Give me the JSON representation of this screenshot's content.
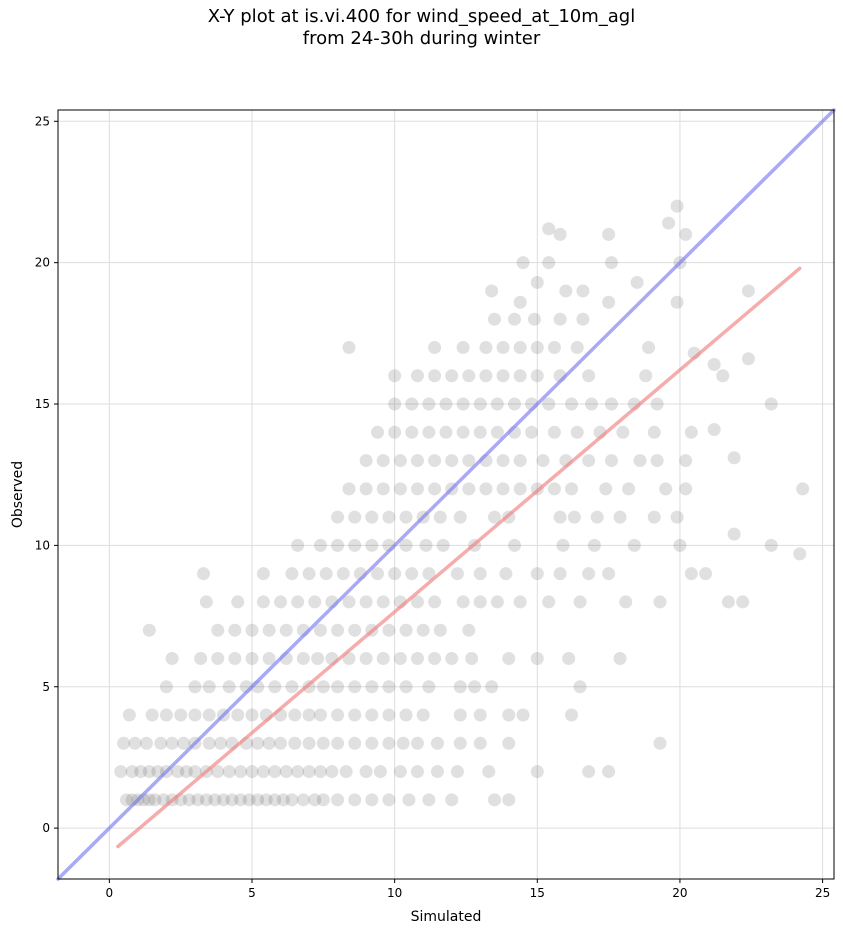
{
  "chart_data": {
    "type": "scatter",
    "title_line1": "X-Y plot at is.vi.400 for wind_speed_at_10m_agl",
    "title_line2": "from 24-30h during winter",
    "xlabel": "Simulated",
    "ylabel": "Observed",
    "xlim": [
      -1.8,
      25.4
    ],
    "ylim": [
      -1.8,
      25.4
    ],
    "xticks": [
      0,
      5,
      10,
      15,
      20,
      25
    ],
    "yticks": [
      0,
      5,
      10,
      15,
      20,
      25
    ],
    "grid": true,
    "colors": {
      "points": "#555555",
      "identity_line": "#7b7bf0",
      "fit_line": "#f08080"
    },
    "identity_line": {
      "x": [
        -1.8,
        25.4
      ],
      "y": [
        -1.8,
        25.4
      ]
    },
    "fit_line": {
      "x": [
        0.3,
        24.2
      ],
      "y": [
        -0.65,
        19.8
      ]
    },
    "points": [
      [
        0.6,
        1
      ],
      [
        0.8,
        1
      ],
      [
        1.0,
        1
      ],
      [
        1.2,
        1
      ],
      [
        1.4,
        1
      ],
      [
        1.6,
        1
      ],
      [
        1.9,
        1
      ],
      [
        2.2,
        1
      ],
      [
        2.5,
        1
      ],
      [
        2.8,
        1
      ],
      [
        3.1,
        1
      ],
      [
        3.4,
        1
      ],
      [
        3.7,
        1
      ],
      [
        4.0,
        1
      ],
      [
        4.3,
        1
      ],
      [
        4.6,
        1
      ],
      [
        4.9,
        1
      ],
      [
        5.2,
        1
      ],
      [
        5.5,
        1
      ],
      [
        5.8,
        1
      ],
      [
        6.1,
        1
      ],
      [
        6.4,
        1
      ],
      [
        6.8,
        1
      ],
      [
        7.2,
        1
      ],
      [
        7.5,
        1
      ],
      [
        8.0,
        1
      ],
      [
        8.6,
        1
      ],
      [
        9.2,
        1
      ],
      [
        9.8,
        1
      ],
      [
        10.5,
        1
      ],
      [
        11.2,
        1
      ],
      [
        12.0,
        1
      ],
      [
        13.5,
        1
      ],
      [
        14.0,
        1
      ],
      [
        0.4,
        2
      ],
      [
        0.8,
        2
      ],
      [
        1.1,
        2
      ],
      [
        1.4,
        2
      ],
      [
        1.7,
        2
      ],
      [
        2.0,
        2
      ],
      [
        2.4,
        2
      ],
      [
        2.7,
        2
      ],
      [
        3.0,
        2
      ],
      [
        3.4,
        2
      ],
      [
        3.8,
        2
      ],
      [
        4.2,
        2
      ],
      [
        4.6,
        2
      ],
      [
        5.0,
        2
      ],
      [
        5.4,
        2
      ],
      [
        5.8,
        2
      ],
      [
        6.2,
        2
      ],
      [
        6.6,
        2
      ],
      [
        7.0,
        2
      ],
      [
        7.4,
        2
      ],
      [
        7.8,
        2
      ],
      [
        8.3,
        2
      ],
      [
        9.0,
        2
      ],
      [
        9.5,
        2
      ],
      [
        10.2,
        2
      ],
      [
        10.8,
        2
      ],
      [
        11.5,
        2
      ],
      [
        12.2,
        2
      ],
      [
        13.3,
        2
      ],
      [
        15.0,
        2
      ],
      [
        16.8,
        2
      ],
      [
        17.5,
        2
      ],
      [
        0.5,
        3
      ],
      [
        0.9,
        3
      ],
      [
        1.3,
        3
      ],
      [
        1.8,
        3
      ],
      [
        2.2,
        3
      ],
      [
        2.6,
        3
      ],
      [
        3.0,
        3
      ],
      [
        3.5,
        3
      ],
      [
        3.9,
        3
      ],
      [
        4.3,
        3
      ],
      [
        4.8,
        3
      ],
      [
        5.2,
        3
      ],
      [
        5.6,
        3
      ],
      [
        6.0,
        3
      ],
      [
        6.5,
        3
      ],
      [
        7.0,
        3
      ],
      [
        7.5,
        3
      ],
      [
        8.0,
        3
      ],
      [
        8.6,
        3
      ],
      [
        9.2,
        3
      ],
      [
        9.8,
        3
      ],
      [
        10.3,
        3
      ],
      [
        10.8,
        3
      ],
      [
        11.5,
        3
      ],
      [
        12.3,
        3
      ],
      [
        13.0,
        3
      ],
      [
        14.0,
        3
      ],
      [
        19.3,
        3
      ],
      [
        0.7,
        4
      ],
      [
        1.5,
        4
      ],
      [
        2.0,
        4
      ],
      [
        2.5,
        4
      ],
      [
        3.0,
        4
      ],
      [
        3.5,
        4
      ],
      [
        4.0,
        4
      ],
      [
        4.5,
        4
      ],
      [
        5.0,
        4
      ],
      [
        5.5,
        4
      ],
      [
        6.0,
        4
      ],
      [
        6.5,
        4
      ],
      [
        7.0,
        4
      ],
      [
        7.4,
        4
      ],
      [
        8.0,
        4
      ],
      [
        8.6,
        4
      ],
      [
        9.2,
        4
      ],
      [
        9.8,
        4
      ],
      [
        10.4,
        4
      ],
      [
        11.0,
        4
      ],
      [
        12.3,
        4
      ],
      [
        13.0,
        4
      ],
      [
        14.0,
        4
      ],
      [
        14.5,
        4
      ],
      [
        16.2,
        4
      ],
      [
        2.0,
        5
      ],
      [
        3.0,
        5
      ],
      [
        3.5,
        5
      ],
      [
        4.2,
        5
      ],
      [
        4.8,
        5
      ],
      [
        5.2,
        5
      ],
      [
        5.8,
        5
      ],
      [
        6.4,
        5
      ],
      [
        7.0,
        5
      ],
      [
        7.5,
        5
      ],
      [
        8.0,
        5
      ],
      [
        8.6,
        5
      ],
      [
        9.2,
        5
      ],
      [
        9.8,
        5
      ],
      [
        10.4,
        5
      ],
      [
        11.2,
        5
      ],
      [
        12.3,
        5
      ],
      [
        12.8,
        5
      ],
      [
        13.4,
        5
      ],
      [
        16.5,
        5
      ],
      [
        2.2,
        6
      ],
      [
        3.2,
        6
      ],
      [
        3.8,
        6
      ],
      [
        4.4,
        6
      ],
      [
        5.0,
        6
      ],
      [
        5.6,
        6
      ],
      [
        6.2,
        6
      ],
      [
        6.8,
        6
      ],
      [
        7.3,
        6
      ],
      [
        7.8,
        6
      ],
      [
        8.4,
        6
      ],
      [
        9.0,
        6
      ],
      [
        9.6,
        6
      ],
      [
        10.2,
        6
      ],
      [
        10.8,
        6
      ],
      [
        11.4,
        6
      ],
      [
        12.0,
        6
      ],
      [
        12.7,
        6
      ],
      [
        14.0,
        6
      ],
      [
        15.0,
        6
      ],
      [
        16.1,
        6
      ],
      [
        17.9,
        6
      ],
      [
        1.4,
        7
      ],
      [
        3.8,
        7
      ],
      [
        4.4,
        7
      ],
      [
        5.0,
        7
      ],
      [
        5.6,
        7
      ],
      [
        6.2,
        7
      ],
      [
        6.8,
        7
      ],
      [
        7.4,
        7
      ],
      [
        8.0,
        7
      ],
      [
        8.6,
        7
      ],
      [
        9.2,
        7
      ],
      [
        9.8,
        7
      ],
      [
        10.4,
        7
      ],
      [
        11.0,
        7
      ],
      [
        11.6,
        7
      ],
      [
        12.6,
        7
      ],
      [
        3.4,
        8
      ],
      [
        4.5,
        8
      ],
      [
        5.4,
        8
      ],
      [
        6.0,
        8
      ],
      [
        6.6,
        8
      ],
      [
        7.2,
        8
      ],
      [
        7.8,
        8
      ],
      [
        8.4,
        8
      ],
      [
        9.0,
        8
      ],
      [
        9.6,
        8
      ],
      [
        10.2,
        8
      ],
      [
        10.8,
        8
      ],
      [
        11.4,
        8
      ],
      [
        12.4,
        8
      ],
      [
        13.0,
        8
      ],
      [
        13.6,
        8
      ],
      [
        14.4,
        8
      ],
      [
        15.4,
        8
      ],
      [
        16.5,
        8
      ],
      [
        18.1,
        8
      ],
      [
        19.3,
        8
      ],
      [
        21.7,
        8
      ],
      [
        22.2,
        8
      ],
      [
        3.3,
        9
      ],
      [
        5.4,
        9
      ],
      [
        6.4,
        9
      ],
      [
        7.0,
        9
      ],
      [
        7.6,
        9
      ],
      [
        8.2,
        9
      ],
      [
        8.8,
        9
      ],
      [
        9.4,
        9
      ],
      [
        10.0,
        9
      ],
      [
        10.6,
        9
      ],
      [
        11.2,
        9
      ],
      [
        12.2,
        9
      ],
      [
        13.0,
        9
      ],
      [
        13.9,
        9
      ],
      [
        15.0,
        9
      ],
      [
        15.8,
        9
      ],
      [
        16.8,
        9
      ],
      [
        17.5,
        9
      ],
      [
        20.4,
        9
      ],
      [
        20.9,
        9
      ],
      [
        6.6,
        10
      ],
      [
        7.4,
        10
      ],
      [
        8.0,
        10
      ],
      [
        8.6,
        10
      ],
      [
        9.2,
        10
      ],
      [
        9.8,
        10
      ],
      [
        10.4,
        10
      ],
      [
        11.1,
        10
      ],
      [
        11.7,
        10
      ],
      [
        12.8,
        10
      ],
      [
        14.2,
        10
      ],
      [
        15.9,
        10
      ],
      [
        17.0,
        10
      ],
      [
        18.4,
        10
      ],
      [
        20.0,
        10
      ],
      [
        23.2,
        10
      ],
      [
        24.2,
        9.7
      ],
      [
        8.0,
        11
      ],
      [
        8.6,
        11
      ],
      [
        9.2,
        11
      ],
      [
        9.8,
        11
      ],
      [
        10.4,
        11
      ],
      [
        11.0,
        11
      ],
      [
        11.6,
        11
      ],
      [
        12.3,
        11
      ],
      [
        13.5,
        11
      ],
      [
        14.0,
        11
      ],
      [
        15.8,
        11
      ],
      [
        16.3,
        11
      ],
      [
        17.1,
        11
      ],
      [
        17.9,
        11
      ],
      [
        19.1,
        11
      ],
      [
        19.9,
        11
      ],
      [
        21.9,
        10.4
      ],
      [
        8.4,
        12
      ],
      [
        9.0,
        12
      ],
      [
        9.6,
        12
      ],
      [
        10.2,
        12
      ],
      [
        10.8,
        12
      ],
      [
        11.4,
        12
      ],
      [
        12.0,
        12
      ],
      [
        12.6,
        12
      ],
      [
        13.2,
        12
      ],
      [
        13.8,
        12
      ],
      [
        14.4,
        12
      ],
      [
        15.0,
        12
      ],
      [
        15.6,
        12
      ],
      [
        16.2,
        12
      ],
      [
        17.4,
        12
      ],
      [
        18.2,
        12
      ],
      [
        19.5,
        12
      ],
      [
        20.2,
        12
      ],
      [
        24.3,
        12
      ],
      [
        9.0,
        13
      ],
      [
        9.6,
        13
      ],
      [
        10.2,
        13
      ],
      [
        10.8,
        13
      ],
      [
        11.4,
        13
      ],
      [
        12.0,
        13
      ],
      [
        12.6,
        13
      ],
      [
        13.2,
        13
      ],
      [
        13.8,
        13
      ],
      [
        14.4,
        13
      ],
      [
        15.2,
        13
      ],
      [
        16.0,
        13
      ],
      [
        16.8,
        13
      ],
      [
        17.6,
        13
      ],
      [
        18.6,
        13
      ],
      [
        19.2,
        13
      ],
      [
        20.2,
        13
      ],
      [
        21.9,
        13.1
      ],
      [
        9.4,
        14
      ],
      [
        10.0,
        14
      ],
      [
        10.6,
        14
      ],
      [
        11.2,
        14
      ],
      [
        11.8,
        14
      ],
      [
        12.4,
        14
      ],
      [
        13.0,
        14
      ],
      [
        13.6,
        14
      ],
      [
        14.2,
        14
      ],
      [
        14.8,
        14
      ],
      [
        15.6,
        14
      ],
      [
        16.4,
        14
      ],
      [
        17.2,
        14
      ],
      [
        18.0,
        14
      ],
      [
        19.1,
        14
      ],
      [
        20.4,
        14
      ],
      [
        21.2,
        14.1
      ],
      [
        10.0,
        15
      ],
      [
        10.6,
        15
      ],
      [
        11.2,
        15
      ],
      [
        11.8,
        15
      ],
      [
        12.4,
        15
      ],
      [
        13.0,
        15
      ],
      [
        13.6,
        15
      ],
      [
        14.2,
        15
      ],
      [
        14.8,
        15
      ],
      [
        15.4,
        15
      ],
      [
        16.2,
        15
      ],
      [
        16.9,
        15
      ],
      [
        17.6,
        15
      ],
      [
        18.4,
        15
      ],
      [
        19.2,
        15
      ],
      [
        23.2,
        15
      ],
      [
        10.0,
        16
      ],
      [
        10.8,
        16
      ],
      [
        11.4,
        16
      ],
      [
        12.0,
        16
      ],
      [
        12.6,
        16
      ],
      [
        13.2,
        16
      ],
      [
        13.8,
        16
      ],
      [
        14.4,
        16
      ],
      [
        15.0,
        16
      ],
      [
        15.8,
        16
      ],
      [
        16.8,
        16
      ],
      [
        18.8,
        16
      ],
      [
        21.2,
        16.4
      ],
      [
        21.5,
        16
      ],
      [
        22.4,
        16.6
      ],
      [
        11.4,
        17
      ],
      [
        12.4,
        17
      ],
      [
        13.2,
        17
      ],
      [
        13.8,
        17
      ],
      [
        14.4,
        17
      ],
      [
        15.0,
        17
      ],
      [
        15.6,
        17
      ],
      [
        16.4,
        17
      ],
      [
        18.9,
        17
      ],
      [
        8.4,
        17
      ],
      [
        20.5,
        16.8
      ],
      [
        13.5,
        18
      ],
      [
        14.2,
        18
      ],
      [
        14.9,
        18
      ],
      [
        15.8,
        18
      ],
      [
        16.6,
        18
      ],
      [
        17.5,
        18.6
      ],
      [
        19.9,
        18.6
      ],
      [
        14.4,
        18.6
      ],
      [
        13.4,
        19
      ],
      [
        15.0,
        19.3
      ],
      [
        16.0,
        19
      ],
      [
        16.6,
        19
      ],
      [
        18.5,
        19.3
      ],
      [
        22.4,
        19
      ],
      [
        14.5,
        20
      ],
      [
        15.4,
        20
      ],
      [
        17.6,
        20
      ],
      [
        20.0,
        20
      ],
      [
        15.8,
        21
      ],
      [
        15.4,
        21.2
      ],
      [
        17.5,
        21
      ],
      [
        20.2,
        21
      ],
      [
        19.6,
        21.4
      ],
      [
        19.9,
        22
      ]
    ]
  }
}
